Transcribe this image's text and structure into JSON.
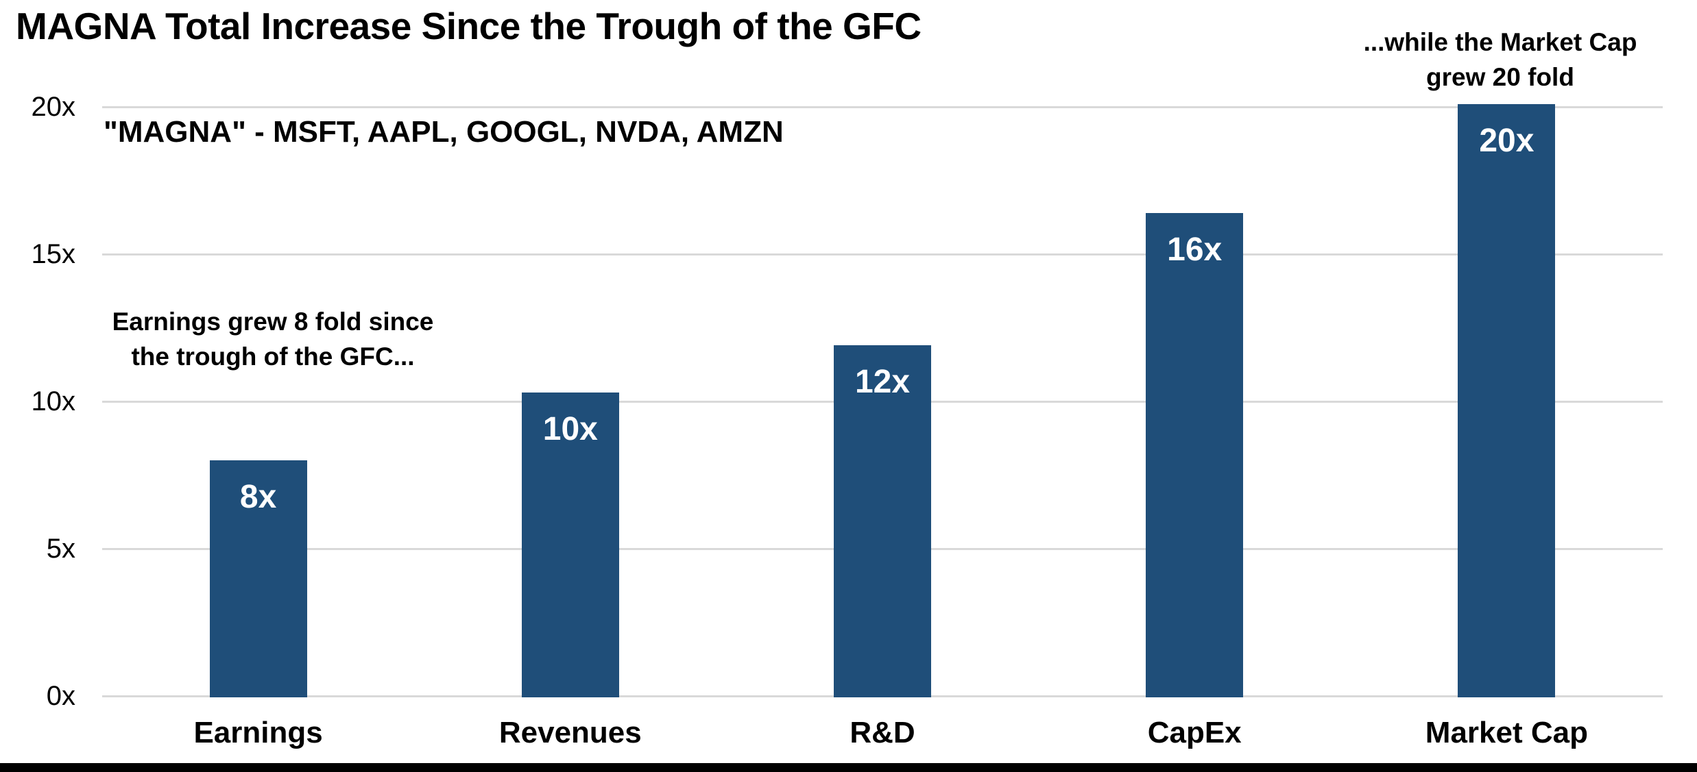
{
  "page": {
    "background_color": "#FFFFFF",
    "bottom_bar_color": "#000000"
  },
  "chart_data": {
    "type": "bar",
    "title": "MAGNA Total Increase Since the Trough of the GFC",
    "subtitle": "\"MAGNA\" - MSFT, AAPL, GOOGL, NVDA, AMZN",
    "categories": [
      "Earnings",
      "Revenues",
      "R&D",
      "CapEx",
      "Market Cap"
    ],
    "values": [
      8.0,
      10.3,
      11.9,
      16.4,
      20.1
    ],
    "bar_labels": [
      "8x",
      "10x",
      "12x",
      "16x",
      "20x"
    ],
    "bar_color": "#1F4E79",
    "bar_label_color": "#FFFFFF",
    "ylim": [
      0,
      20
    ],
    "yticks": [
      0,
      5,
      10,
      15,
      20
    ],
    "ytick_labels": [
      "0x",
      "5x",
      "10x",
      "15x",
      "20x"
    ],
    "grid": true,
    "gridline_color": "#D9D9D9",
    "legend": false,
    "annotations": [
      {
        "lines": [
          "Earnings grew 8 fold since",
          "the trough of the GFC..."
        ]
      },
      {
        "lines": [
          "...while the Market Cap",
          "grew 20 fold"
        ]
      }
    ]
  }
}
